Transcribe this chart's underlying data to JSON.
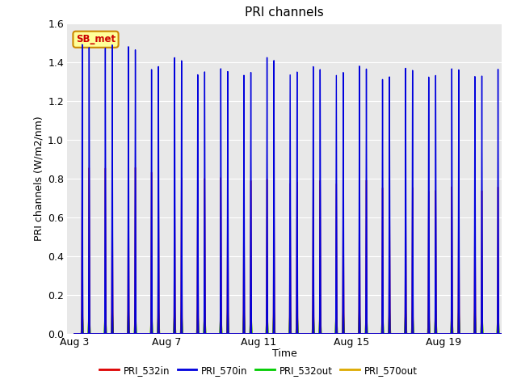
{
  "title": "PRI channels",
  "xlabel": "Time",
  "ylabel": "PRI channels (W/m2/nm)",
  "ylim": [
    0.0,
    1.6
  ],
  "yticks": [
    0.0,
    0.2,
    0.4,
    0.6,
    0.8,
    1.0,
    1.2,
    1.4,
    1.6
  ],
  "xtick_labels": [
    "Aug 3",
    "Aug 7",
    "Aug 11",
    "Aug 15",
    "Aug 19"
  ],
  "xtick_positions": [
    0,
    4,
    8,
    12,
    16
  ],
  "bg_color": "#e8e8e8",
  "series": {
    "PRI_532in": {
      "color": "#dd0000",
      "lw": 1.0
    },
    "PRI_570in": {
      "color": "#0000dd",
      "lw": 1.0
    },
    "PRI_532out": {
      "color": "#00cc00",
      "lw": 1.0
    },
    "PRI_570out": {
      "color": "#ddaa00",
      "lw": 1.0
    }
  },
  "legend_label": "SB_met",
  "legend_box_color": "#ffff99",
  "legend_border_color": "#cc8800",
  "legend_text_color": "#cc0000",
  "total_days": 18.5
}
